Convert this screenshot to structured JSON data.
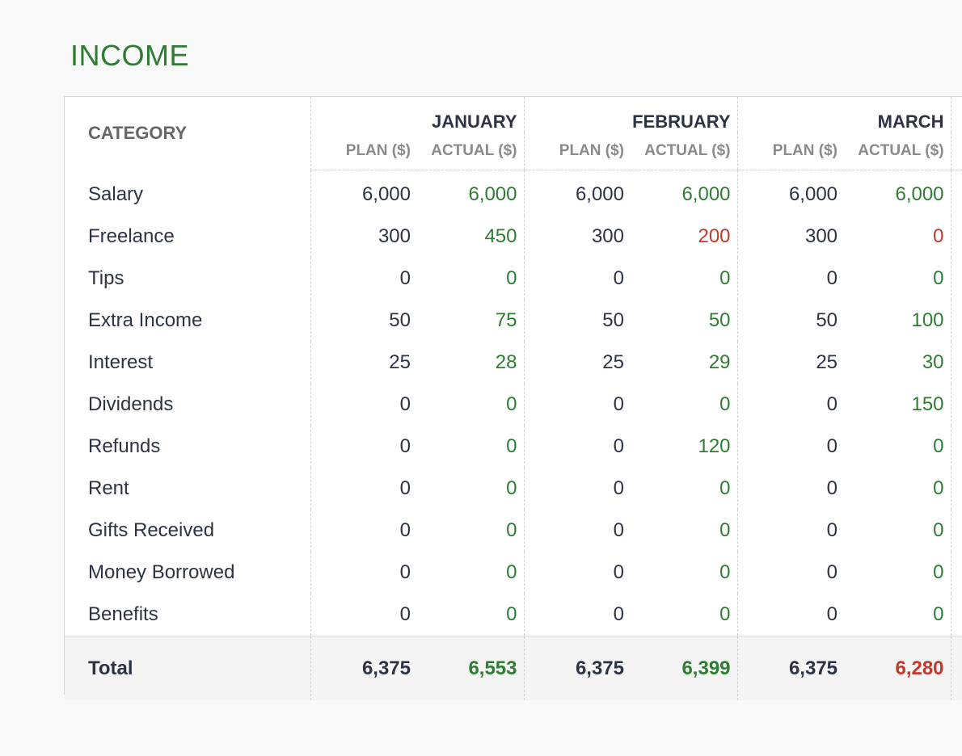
{
  "title": "INCOME",
  "colors": {
    "over_or_equal": "#2e7d32",
    "under": "#c0392b",
    "text": "#2c3345"
  },
  "table": {
    "category_header": "CATEGORY",
    "months": [
      "JANUARY",
      "FEBRUARY",
      "MARCH"
    ],
    "plan_label": "PLAN ($)",
    "actual_label": "ACTUAL ($)",
    "rows": [
      {
        "category": "Salary",
        "values": [
          [
            "6,000",
            "6,000",
            "green"
          ],
          [
            "6,000",
            "6,000",
            "green"
          ],
          [
            "6,000",
            "6,000",
            "green"
          ]
        ]
      },
      {
        "category": "Freelance",
        "values": [
          [
            "300",
            "450",
            "green"
          ],
          [
            "300",
            "200",
            "red"
          ],
          [
            "300",
            "0",
            "red"
          ]
        ]
      },
      {
        "category": "Tips",
        "values": [
          [
            "0",
            "0",
            "green"
          ],
          [
            "0",
            "0",
            "green"
          ],
          [
            "0",
            "0",
            "green"
          ]
        ]
      },
      {
        "category": "Extra Income",
        "values": [
          [
            "50",
            "75",
            "green"
          ],
          [
            "50",
            "50",
            "green"
          ],
          [
            "50",
            "100",
            "green"
          ]
        ]
      },
      {
        "category": "Interest",
        "values": [
          [
            "25",
            "28",
            "green"
          ],
          [
            "25",
            "29",
            "green"
          ],
          [
            "25",
            "30",
            "green"
          ]
        ]
      },
      {
        "category": "Dividends",
        "values": [
          [
            "0",
            "0",
            "green"
          ],
          [
            "0",
            "0",
            "green"
          ],
          [
            "0",
            "150",
            "green"
          ]
        ]
      },
      {
        "category": "Refunds",
        "values": [
          [
            "0",
            "0",
            "green"
          ],
          [
            "0",
            "120",
            "green"
          ],
          [
            "0",
            "0",
            "green"
          ]
        ]
      },
      {
        "category": "Rent",
        "values": [
          [
            "0",
            "0",
            "green"
          ],
          [
            "0",
            "0",
            "green"
          ],
          [
            "0",
            "0",
            "green"
          ]
        ]
      },
      {
        "category": "Gifts Received",
        "values": [
          [
            "0",
            "0",
            "green"
          ],
          [
            "0",
            "0",
            "green"
          ],
          [
            "0",
            "0",
            "green"
          ]
        ]
      },
      {
        "category": "Money Borrowed",
        "values": [
          [
            "0",
            "0",
            "green"
          ],
          [
            "0",
            "0",
            "green"
          ],
          [
            "0",
            "0",
            "green"
          ]
        ]
      },
      {
        "category": "Benefits",
        "values": [
          [
            "0",
            "0",
            "green"
          ],
          [
            "0",
            "0",
            "green"
          ],
          [
            "0",
            "0",
            "green"
          ]
        ]
      }
    ],
    "total": {
      "label": "Total",
      "values": [
        [
          "6,375",
          "6,553",
          "green"
        ],
        [
          "6,375",
          "6,399",
          "green"
        ],
        [
          "6,375",
          "6,280",
          "red"
        ]
      ]
    }
  }
}
